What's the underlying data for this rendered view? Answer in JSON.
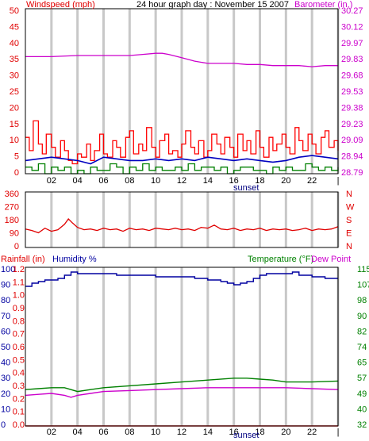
{
  "colors": {
    "windspeed": "#e00000",
    "gust": "#ff0000",
    "avg_wind": "#0000c0",
    "calm": "#008000",
    "barometer": "#cc00cc",
    "direction": "#e00000",
    "humidity": "#0000a0",
    "temperature": "#008000",
    "dewpoint": "#cc00cc",
    "rainfall": "#e00000",
    "grid": "#c8c8c8",
    "frame": "#000000"
  },
  "chart_data": [
    {
      "type": "line",
      "title": "24 hour graph day : November 15 2007",
      "left_label": "Windspeed (mph)",
      "right_label": "Barometer (in.)",
      "x_ticks": [
        "02",
        "04",
        "06",
        "08",
        "10",
        "12",
        "14",
        "16",
        "18",
        "20",
        "22",
        "|"
      ],
      "x_annotation": "sunset",
      "x_range": [
        0,
        24
      ],
      "y_left_ticks": [
        "50",
        "45",
        "40",
        "35",
        "30",
        "25",
        "20",
        "15",
        "10",
        "5",
        "0"
      ],
      "y_left_range": [
        0,
        50
      ],
      "y_right_ticks": [
        "30.27",
        "30.12",
        "29.97",
        "29.83",
        "29.68",
        "29.53",
        "29.38",
        "29.23",
        "29.09",
        "28.94",
        "28.79"
      ],
      "y_right_range": [
        28.79,
        30.27
      ],
      "series": [
        {
          "key": "barometer",
          "axis": "right",
          "x": [
            0,
            2,
            4,
            6,
            8,
            9,
            10,
            10.5,
            11,
            12,
            13,
            14,
            15,
            16,
            17,
            18,
            19,
            20,
            21,
            22,
            23,
            24
          ],
          "y": [
            29.84,
            29.84,
            29.85,
            29.85,
            29.85,
            29.86,
            29.87,
            29.87,
            29.86,
            29.83,
            29.8,
            29.78,
            29.78,
            29.78,
            29.77,
            29.77,
            29.76,
            29.76,
            29.76,
            29.75,
            29.76,
            29.76
          ]
        },
        {
          "key": "avg_wind",
          "axis": "left",
          "x": [
            0,
            1,
            2,
            3,
            4,
            5,
            6,
            7,
            8,
            9,
            10,
            11,
            12,
            13,
            14,
            15,
            16,
            17,
            18,
            19,
            20,
            21,
            22,
            23,
            24
          ],
          "y": [
            4,
            4.5,
            5,
            4.5,
            4,
            3,
            5,
            4.5,
            4,
            4,
            4.5,
            4,
            4.5,
            4,
            5,
            4.5,
            4,
            4.5,
            4,
            3.5,
            4,
            5,
            5.5,
            5,
            4.5
          ]
        },
        {
          "key": "gust",
          "axis": "left",
          "step": true,
          "x": [
            0,
            0.3,
            0.6,
            1,
            1.3,
            1.6,
            2,
            2.3,
            2.7,
            3,
            3.3,
            3.6,
            4,
            4.3,
            4.7,
            5,
            5.3,
            5.7,
            6,
            6.3,
            6.7,
            7,
            7.3,
            7.7,
            8,
            8.3,
            8.7,
            9,
            9.3,
            9.7,
            10,
            10.3,
            10.7,
            11,
            11.3,
            11.7,
            12,
            12.3,
            12.7,
            13,
            13.3,
            13.7,
            14,
            14.3,
            14.7,
            15,
            15.3,
            15.7,
            16,
            16.3,
            16.7,
            17,
            17.3,
            17.7,
            18,
            18.3,
            18.7,
            19,
            19.3,
            19.7,
            20,
            20.3,
            20.7,
            21,
            21.3,
            21.7,
            22,
            22.3,
            22.7,
            23,
            23.3,
            23.7,
            24
          ],
          "y": [
            11,
            7,
            16,
            9,
            6,
            12,
            8,
            5,
            10,
            7,
            4,
            3,
            6,
            5,
            9,
            4,
            7,
            12,
            6,
            5,
            10,
            8,
            5,
            11,
            13,
            6,
            9,
            7,
            14,
            8,
            5,
            10,
            12,
            6,
            7,
            5,
            9,
            13,
            8,
            6,
            10,
            5,
            7,
            12,
            9,
            6,
            11,
            8,
            5,
            12,
            7,
            10,
            6,
            13,
            8,
            5,
            11,
            7,
            9,
            12,
            8,
            6,
            14,
            10,
            7,
            12,
            9,
            6,
            11,
            13,
            8,
            10,
            7
          ]
        },
        {
          "key": "calm",
          "axis": "left",
          "step": true,
          "x": [
            0,
            0.5,
            1,
            1.5,
            2,
            2.5,
            3,
            3.5,
            4,
            4.5,
            5,
            5.5,
            6,
            6.5,
            7,
            7.5,
            8,
            8.5,
            9,
            9.5,
            10,
            10.5,
            11,
            11.5,
            12,
            12.5,
            13,
            13.5,
            14,
            14.5,
            15,
            15.5,
            16,
            16.5,
            17,
            17.5,
            18,
            18.5,
            19,
            19.5,
            20,
            20.5,
            21,
            21.5,
            22,
            22.5,
            23,
            23.5,
            24
          ],
          "y": [
            2,
            1,
            3,
            0,
            2,
            1,
            2,
            0,
            1,
            0,
            2,
            1,
            1,
            3,
            2,
            0,
            2,
            1,
            3,
            1,
            2,
            1,
            1,
            2,
            1,
            3,
            1,
            2,
            2,
            1,
            2,
            0,
            1,
            2,
            2,
            1,
            1,
            0,
            2,
            1,
            2,
            1,
            1,
            3,
            2,
            1,
            2,
            1,
            2
          ]
        }
      ]
    },
    {
      "type": "line",
      "y_left_ticks": [
        "360",
        "270",
        "180",
        "90",
        "0"
      ],
      "y_left_range": [
        0,
        360
      ],
      "y_right_ticks": [
        "N",
        "W",
        "S",
        "E",
        "N"
      ],
      "x_range": [
        0,
        24
      ],
      "series": [
        {
          "key": "direction",
          "axis": "left",
          "x": [
            0,
            0.5,
            1,
            1.5,
            2,
            2.5,
            3,
            3.3,
            3.6,
            4,
            4.5,
            5,
            5.5,
            6,
            6.5,
            7,
            7.5,
            8,
            8.5,
            9,
            9.5,
            10,
            10.5,
            11,
            11.5,
            12,
            12.5,
            13,
            13.5,
            14,
            14.5,
            15,
            15.5,
            16,
            16.5,
            17,
            17.5,
            18,
            18.5,
            19,
            19.5,
            20,
            20.5,
            21,
            21.5,
            22,
            22.5,
            23,
            23.5,
            24
          ],
          "y": [
            120,
            110,
            95,
            125,
            105,
            115,
            150,
            185,
            160,
            130,
            115,
            120,
            110,
            125,
            115,
            120,
            105,
            125,
            115,
            120,
            110,
            125,
            120,
            115,
            125,
            115,
            120,
            110,
            130,
            125,
            145,
            120,
            115,
            125,
            110,
            120,
            115,
            125,
            110,
            120,
            115,
            120,
            110,
            115,
            125,
            110,
            120,
            115,
            120,
            135
          ]
        }
      ]
    },
    {
      "type": "line",
      "rain_label": "Rainfall (in)",
      "humidity_label": "Humidity %",
      "temp_label": "Temperature (°F)",
      "dew_label": "Dew Point",
      "x_ticks": [
        "02",
        "04",
        "06",
        "08",
        "10",
        "12",
        "14",
        "16",
        "18",
        "20",
        "22",
        "|"
      ],
      "x_annotation": "sunset",
      "x_range": [
        0,
        24
      ],
      "y_humidity_ticks": [
        "100",
        "90",
        "80",
        "70",
        "60",
        "50",
        "40",
        "30",
        "20",
        "10",
        "0"
      ],
      "y_rain_ticks": [
        "1.2",
        "1.1",
        "1.0",
        "0.9",
        "0.8",
        "0.7",
        "0.6",
        "0.5",
        "0.4",
        "0.3",
        "0.2",
        "0.1",
        "0.0"
      ],
      "y_right_ticks": [
        "115",
        "107",
        "98",
        "90",
        "82",
        "74",
        "65",
        "57",
        "49",
        "40",
        "32"
      ],
      "y_humidity_range": [
        0,
        100
      ],
      "y_right_range": [
        32,
        115
      ],
      "series": [
        {
          "key": "humidity",
          "axis": "humidity",
          "step": true,
          "x": [
            0,
            0.5,
            1,
            1.5,
            2,
            2.5,
            3,
            3.5,
            4,
            5,
            6,
            7,
            8,
            9,
            10,
            11,
            12,
            13,
            14,
            15,
            15.5,
            16,
            16.5,
            17,
            17.5,
            18,
            18.5,
            19,
            20,
            20.5,
            21,
            22,
            23,
            24
          ],
          "y": [
            88,
            90,
            91,
            92,
            92,
            93,
            95,
            97,
            96,
            96,
            96,
            95,
            95,
            95,
            94,
            94,
            94,
            93,
            92,
            91,
            90,
            89,
            90,
            91,
            93,
            95,
            96,
            96,
            96,
            97,
            95,
            94,
            93,
            93
          ]
        },
        {
          "key": "temperature",
          "axis": "right",
          "x": [
            0,
            1,
            2,
            3,
            4,
            5,
            6,
            8,
            10,
            12,
            14,
            16,
            17,
            18,
            19,
            20,
            22,
            24
          ],
          "y": [
            51,
            51.5,
            52,
            52,
            50,
            51,
            52,
            53,
            54,
            55,
            56,
            57,
            57,
            56.5,
            56,
            55,
            55,
            55.5
          ]
        },
        {
          "key": "dewpoint",
          "axis": "right",
          "x": [
            0,
            1,
            2,
            3,
            3.5,
            4,
            5,
            6,
            8,
            10,
            12,
            14,
            16,
            18,
            20,
            22,
            24
          ],
          "y": [
            48,
            48.5,
            49,
            48,
            47,
            48,
            49,
            50,
            50.5,
            51,
            51.5,
            52,
            52,
            52,
            52,
            51.5,
            51
          ]
        },
        {
          "key": "rainfall",
          "axis": "humidity",
          "x": [
            0,
            24
          ],
          "y": [
            0,
            0
          ]
        }
      ]
    }
  ]
}
